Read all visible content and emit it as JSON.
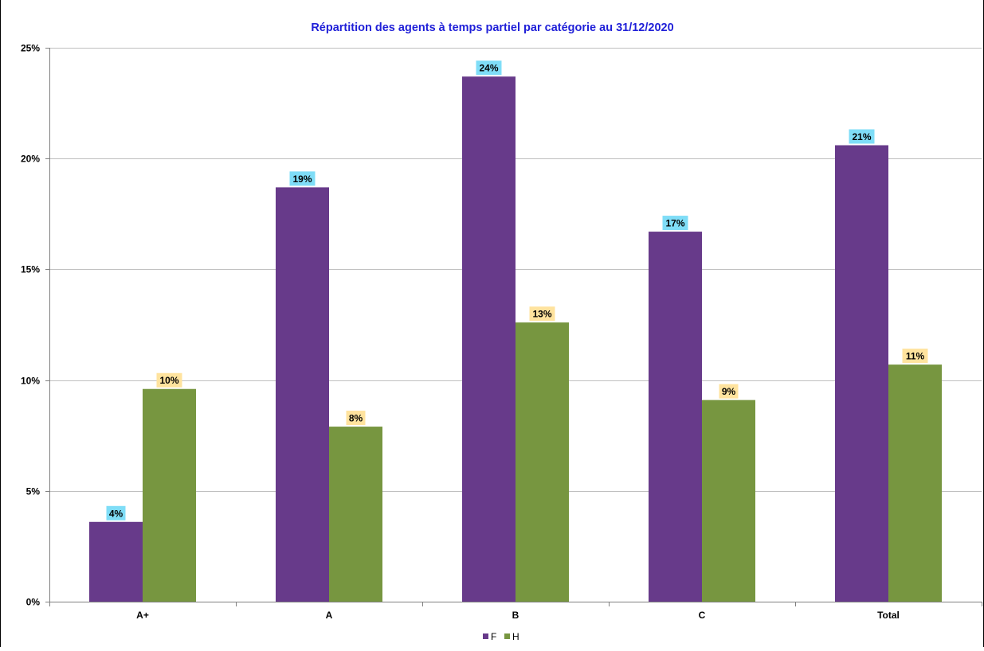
{
  "chart_data": {
    "type": "bar",
    "title": "Répartition des agents à temps partiel par catégorie au 31/12/2020",
    "categories": [
      "A+",
      "A",
      "B",
      "C",
      "Total"
    ],
    "series": [
      {
        "name": "F",
        "values": [
          3.6,
          18.7,
          23.7,
          16.7,
          20.6
        ],
        "labels": [
          "4%",
          "19%",
          "24%",
          "17%",
          "21%"
        ],
        "color": "#673A8A",
        "label_bg": "#7FDDF7"
      },
      {
        "name": "H",
        "values": [
          9.6,
          7.9,
          12.6,
          9.1,
          10.7
        ],
        "labels": [
          "10%",
          "8%",
          "13%",
          "9%",
          "11%"
        ],
        "color": "#779640",
        "label_bg": "#FFE39E"
      }
    ],
    "ylim": [
      0,
      25
    ],
    "yticks": [
      0,
      5,
      10,
      15,
      20,
      25
    ],
    "ytick_labels": [
      "0%",
      "5%",
      "10%",
      "15%",
      "20%",
      "25%"
    ],
    "xlabel": "",
    "ylabel": "",
    "grid": true,
    "legend_position": "bottom",
    "title_color": "#1F1FD8"
  }
}
